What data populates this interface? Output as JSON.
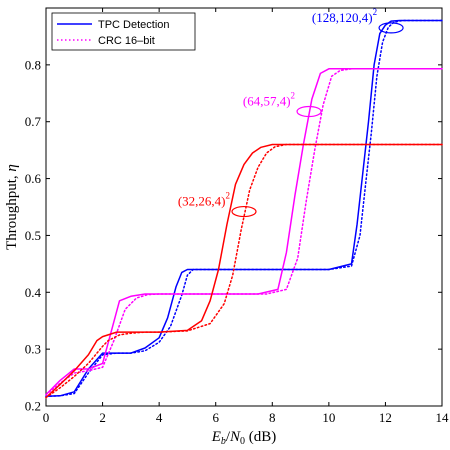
{
  "chart_data": {
    "type": "line",
    "xlabel": "E_b/N_0 (dB)",
    "xlabel_parts": {
      "E": "E",
      "b": "b",
      "slash": "/",
      "N": "N",
      "zero": "0",
      "unit": " (dB)"
    },
    "ylabel": "Throughput, η",
    "ylabel_parts": {
      "text": "Throughput, ",
      "symbol": "η"
    },
    "xlim": [
      0,
      14
    ],
    "ylim": [
      0.2,
      0.9
    ],
    "xticks": [
      0,
      2,
      4,
      6,
      8,
      10,
      12,
      14
    ],
    "xtick_labels": [
      "0",
      "2",
      "4",
      "6",
      "8",
      "10",
      "12",
      "14"
    ],
    "yticks": [
      0.2,
      0.3,
      0.4,
      0.5,
      0.6,
      0.7,
      0.8
    ],
    "ytick_labels": [
      "0.2",
      "0.3",
      "0.4",
      "0.5",
      "0.6",
      "0.7",
      "0.8"
    ],
    "grid": false,
    "legend": {
      "position": "top-left",
      "entries": [
        {
          "label": "TPC Detection",
          "style": "solid",
          "color": "#0000ff"
        },
        {
          "label": "CRC 16–bit",
          "style": "dotted",
          "color": "#ff00ff"
        }
      ]
    },
    "annotations": [
      {
        "text": "(128,120,4)",
        "sup": "2",
        "color": "#0000ff",
        "x": 12.2,
        "y": 0.865
      },
      {
        "text": "(64,57,4)",
        "sup": "2",
        "color": "#ff00ff",
        "x": 9.3,
        "y": 0.718
      },
      {
        "text": "(32,26,4)",
        "sup": "2",
        "color": "#ff0000",
        "x": 7.0,
        "y": 0.542
      }
    ],
    "series": [
      {
        "code": "(128,120,4)^2",
        "color": "#0000ff",
        "style": "solid",
        "x": [
          0,
          0.5,
          1,
          1.5,
          2,
          2.5,
          3,
          3.5,
          4,
          4.3,
          4.6,
          4.8,
          5,
          6,
          8,
          10,
          10.8,
          11,
          11.2,
          11.4,
          11.6,
          11.8,
          12,
          12.2,
          12.5,
          13,
          14
        ],
        "y": [
          0.217,
          0.218,
          0.225,
          0.265,
          0.293,
          0.293,
          0.293,
          0.302,
          0.32,
          0.355,
          0.41,
          0.435,
          0.44,
          0.44,
          0.44,
          0.44,
          0.45,
          0.52,
          0.61,
          0.7,
          0.8,
          0.855,
          0.87,
          0.877,
          0.878,
          0.878,
          0.878
        ]
      },
      {
        "code": "(128,120,4)^2",
        "color": "#0000ff",
        "style": "dotted",
        "x": [
          0,
          0.5,
          1,
          1.5,
          2,
          2.5,
          3,
          3.5,
          4,
          4.4,
          4.8,
          5,
          5.2,
          6,
          8,
          10,
          10.8,
          11.1,
          11.3,
          11.5,
          11.7,
          11.9,
          12.1,
          12.3,
          12.6,
          13,
          14
        ],
        "y": [
          0.217,
          0.218,
          0.222,
          0.258,
          0.29,
          0.293,
          0.293,
          0.297,
          0.312,
          0.34,
          0.395,
          0.43,
          0.44,
          0.44,
          0.44,
          0.44,
          0.446,
          0.5,
          0.59,
          0.68,
          0.78,
          0.84,
          0.866,
          0.875,
          0.878,
          0.878,
          0.878
        ]
      },
      {
        "code": "(64,57,4)^2",
        "color": "#ff00ff",
        "style": "solid",
        "x": [
          0,
          0.5,
          1,
          1.5,
          2,
          2.3,
          2.6,
          3,
          3.5,
          4,
          6,
          7.5,
          8.2,
          8.5,
          8.8,
          9.1,
          9.4,
          9.7,
          10,
          10.5,
          11,
          14
        ],
        "y": [
          0.22,
          0.245,
          0.265,
          0.265,
          0.275,
          0.33,
          0.385,
          0.393,
          0.397,
          0.397,
          0.397,
          0.397,
          0.405,
          0.47,
          0.57,
          0.66,
          0.74,
          0.785,
          0.793,
          0.793,
          0.793,
          0.793
        ]
      },
      {
        "code": "(64,57,4)^2",
        "color": "#ff00ff",
        "style": "dotted",
        "x": [
          0,
          0.5,
          1,
          1.5,
          2,
          2.4,
          2.8,
          3.2,
          3.6,
          4,
          6,
          7.8,
          8.5,
          8.9,
          9.2,
          9.5,
          9.8,
          10.1,
          10.4,
          10.8,
          11.2,
          14
        ],
        "y": [
          0.22,
          0.24,
          0.258,
          0.262,
          0.268,
          0.315,
          0.37,
          0.39,
          0.396,
          0.397,
          0.397,
          0.397,
          0.405,
          0.46,
          0.56,
          0.65,
          0.73,
          0.78,
          0.79,
          0.793,
          0.793,
          0.793
        ]
      },
      {
        "code": "(32,26,4)^2",
        "color": "#ff0000",
        "style": "solid",
        "x": [
          0,
          0.5,
          1,
          1.5,
          1.8,
          2,
          2.5,
          3,
          3.5,
          4,
          5,
          5.5,
          5.8,
          6.1,
          6.4,
          6.7,
          7,
          7.3,
          7.6,
          8,
          8.5,
          9,
          10,
          14
        ],
        "y": [
          0.215,
          0.238,
          0.262,
          0.29,
          0.315,
          0.322,
          0.33,
          0.33,
          0.33,
          0.33,
          0.333,
          0.35,
          0.385,
          0.44,
          0.52,
          0.59,
          0.625,
          0.645,
          0.655,
          0.66,
          0.66,
          0.66,
          0.66,
          0.66
        ]
      },
      {
        "code": "(32,26,4)^2",
        "color": "#ff0000",
        "style": "dotted",
        "x": [
          0,
          0.5,
          1,
          1.5,
          2,
          2.2,
          2.6,
          3,
          3.5,
          4,
          5,
          5.8,
          6.3,
          6.6,
          6.9,
          7.2,
          7.5,
          7.8,
          8.1,
          8.5,
          9,
          10,
          14
        ],
        "y": [
          0.215,
          0.232,
          0.252,
          0.275,
          0.305,
          0.315,
          0.325,
          0.328,
          0.33,
          0.33,
          0.332,
          0.345,
          0.38,
          0.43,
          0.51,
          0.58,
          0.62,
          0.645,
          0.656,
          0.66,
          0.66,
          0.66,
          0.66
        ]
      }
    ]
  }
}
